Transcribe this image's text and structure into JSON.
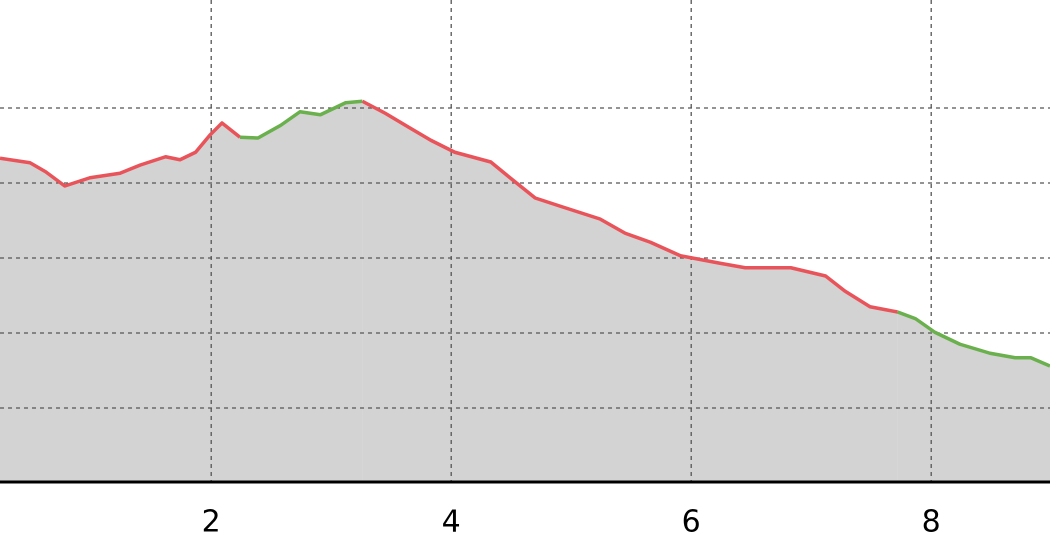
{
  "chart_data": {
    "type": "area",
    "x": [
      0.24,
      0.49,
      0.62,
      0.78,
      0.99,
      1.24,
      1.41,
      1.62,
      1.74,
      1.87,
      1.99,
      2.09,
      2.24,
      2.39,
      2.58,
      2.74,
      2.91,
      3.12,
      3.26,
      3.45,
      3.66,
      3.83,
      4.03,
      4.33,
      4.49,
      4.7,
      4.91,
      5.24,
      5.45,
      5.66,
      5.91,
      6.24,
      6.45,
      6.83,
      7.12,
      7.28,
      7.49,
      7.72,
      7.87,
      8.03,
      8.24,
      8.49,
      8.7,
      8.83,
      8.99
    ],
    "series": [
      {
        "color": "#e8545a",
        "values": [
          4.33,
          4.27,
          4.15,
          3.96,
          4.07,
          4.13,
          4.24,
          4.35,
          4.31,
          4.41,
          4.64,
          4.8,
          4.61,
          null,
          null,
          null,
          null,
          null,
          5.09,
          4.93,
          4.73,
          4.57,
          4.41,
          4.28,
          4.07,
          3.8,
          3.69,
          3.52,
          3.33,
          3.21,
          3.03,
          2.93,
          2.87,
          2.87,
          2.76,
          2.56,
          2.35,
          2.28,
          null,
          null,
          null,
          null,
          null,
          null,
          null
        ]
      },
      {
        "color": "#6ab04c",
        "values": [
          null,
          null,
          null,
          null,
          null,
          null,
          null,
          null,
          null,
          null,
          null,
          null,
          4.61,
          4.6,
          4.77,
          4.95,
          4.91,
          5.07,
          5.09,
          null,
          null,
          null,
          null,
          null,
          null,
          null,
          null,
          null,
          null,
          null,
          null,
          null,
          null,
          null,
          null,
          null,
          null,
          2.28,
          2.19,
          2.01,
          1.85,
          1.73,
          1.67,
          1.67,
          1.56
        ]
      }
    ],
    "fill": "#d3d3d3",
    "xlim": [
      0.24,
      8.99
    ],
    "xticks": [
      2,
      4,
      6,
      8
    ],
    "ylim": [
      0,
      6.44
    ],
    "yticks": [
      1,
      2,
      3,
      4,
      5
    ],
    "grid": true
  }
}
